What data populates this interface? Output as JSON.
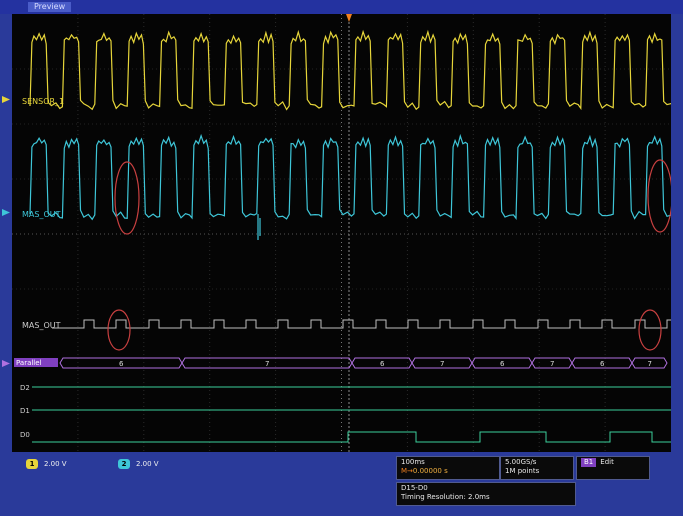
{
  "header": {
    "mode": "Preview"
  },
  "channels": {
    "ch1": {
      "label": "SENSOR_1",
      "color": "#e6d53a"
    },
    "ch2": {
      "label": "MAS_OUT",
      "color": "#3ec6d8"
    },
    "d2": {
      "label": "MAS_OUT"
    },
    "bus": {
      "label": "Parallel",
      "values": [
        "6",
        "7",
        "6",
        "7",
        "6",
        "7",
        "6",
        "7"
      ]
    },
    "digital": [
      {
        "label": "D2"
      },
      {
        "label": "D1"
      },
      {
        "label": "D0"
      }
    ]
  },
  "readouts": {
    "ch1_scale": "2.00 V",
    "ch2_scale": "2.00 V",
    "time_div": "100ms",
    "trigger_pos": "0.00000 s",
    "sample_rate": "5.00GS/s",
    "record_length": "1M points",
    "bus_chip": "B1",
    "bus_chip_label": "Edit",
    "timing_line1": "D15-D0",
    "timing_line2": "Timing Resolution: 2.0ms"
  },
  "colors": {
    "ch1": "#e6d53a",
    "ch2": "#3ec6d8",
    "digital": "#3ccf9a",
    "bus": "#b070e0",
    "marker": "#c84040"
  }
}
